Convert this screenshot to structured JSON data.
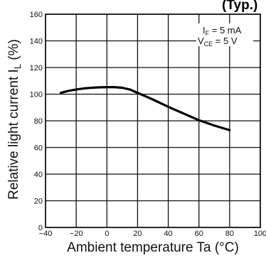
{
  "chart_data": {
    "type": "line",
    "title": "",
    "title_fragment": "(Typ.)",
    "xlabel": "Ambient temperature Ta (°C)",
    "ylabel": "Relative light current I",
    "ylabel_sub": "L",
    "ylabel_unit": " (%)",
    "xlim": [
      -40,
      100
    ],
    "ylim": [
      0,
      160
    ],
    "x_ticks": [
      "−40",
      "−20",
      "0",
      "20",
      "40",
      "60",
      "80",
      "100"
    ],
    "y_ticks": [
      "0",
      "20",
      "40",
      "60",
      "80",
      "100",
      "120",
      "140",
      "160"
    ],
    "grid": true,
    "annotations": [
      {
        "main": "I",
        "sub": "F",
        "rest": " = 5 mA"
      },
      {
        "main": "V",
        "sub": "CE",
        "rest": " = 5 V"
      }
    ],
    "series": [
      {
        "x": [
          -30,
          -25,
          -20,
          -15,
          -10,
          -5,
          0,
          5,
          10,
          15,
          20,
          25,
          30,
          40,
          50,
          60,
          70,
          80
        ],
        "y": [
          101,
          102.5,
          103.5,
          104.3,
          104.8,
          105.1,
          105.3,
          105.3,
          104.8,
          103.5,
          101,
          98.5,
          96,
          90.5,
          85.5,
          80.5,
          76.5,
          73
        ]
      }
    ]
  }
}
